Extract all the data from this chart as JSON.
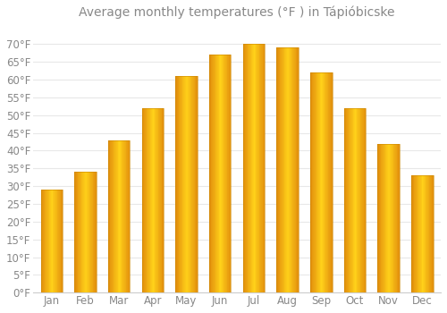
{
  "title": "Average monthly temperatures (°F ) in Tápióbicske",
  "months": [
    "Jan",
    "Feb",
    "Mar",
    "Apr",
    "May",
    "Jun",
    "Jul",
    "Aug",
    "Sep",
    "Oct",
    "Nov",
    "Dec"
  ],
  "values": [
    29,
    34,
    43,
    52,
    61,
    67,
    70,
    69,
    62,
    52,
    42,
    33
  ],
  "bar_color_center": "#FFB800",
  "bar_color_edge": "#E08000",
  "background_color": "#FFFFFF",
  "grid_color": "#E8E8E8",
  "text_color": "#888888",
  "ylim": [
    0,
    75
  ],
  "yticks": [
    0,
    5,
    10,
    15,
    20,
    25,
    30,
    35,
    40,
    45,
    50,
    55,
    60,
    65,
    70
  ],
  "title_fontsize": 10,
  "tick_fontsize": 8.5
}
